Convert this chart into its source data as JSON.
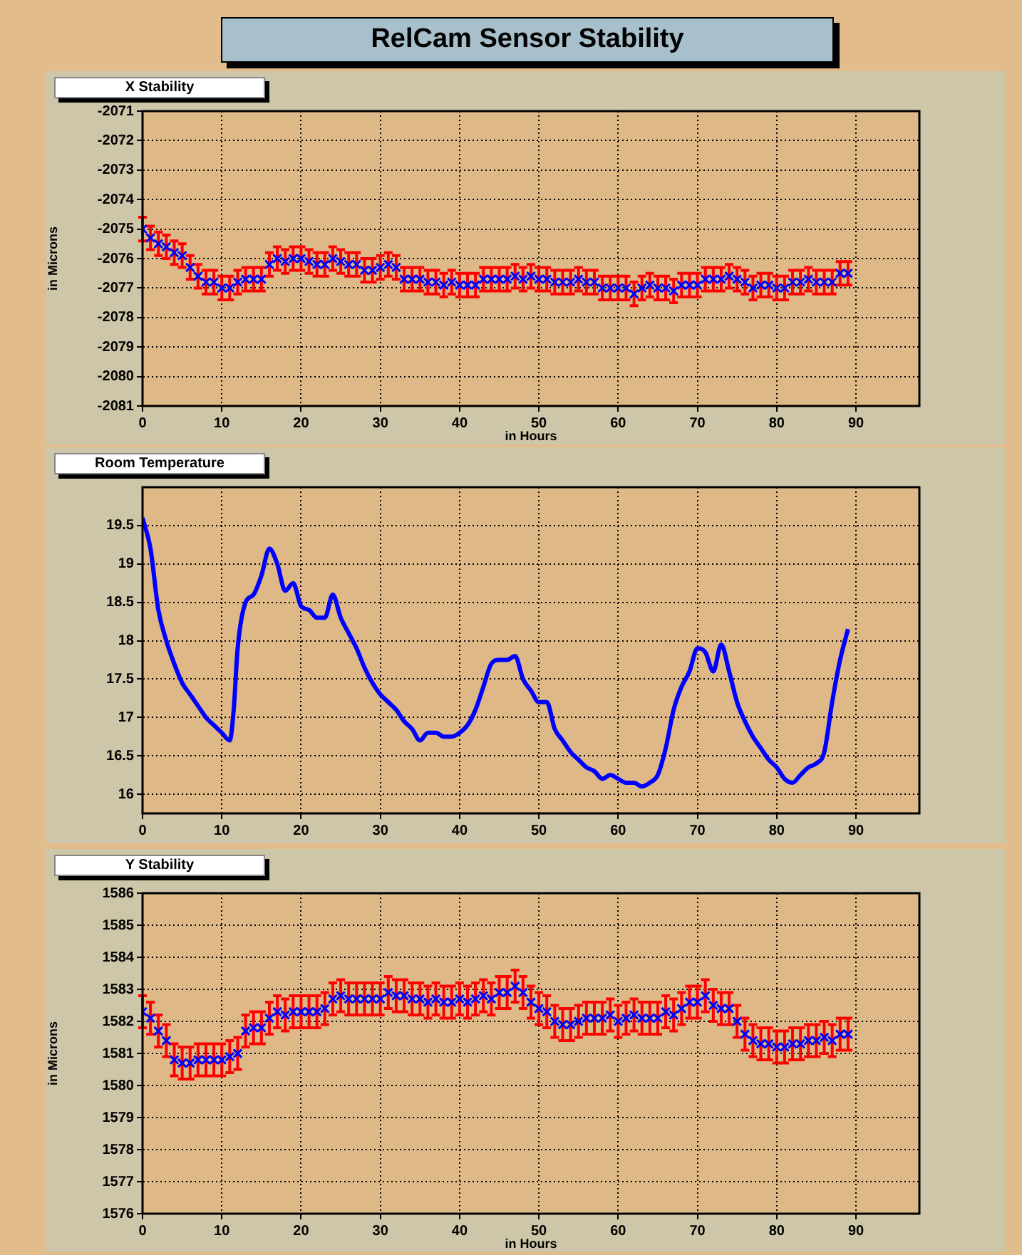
{
  "chart_data": [
    {
      "type": "scatter",
      "title": "RelCam Sensor Stability",
      "subtitle": "X Stability",
      "xlabel": "in Hours",
      "ylabel": "in Microns",
      "xlim": [
        0,
        98
      ],
      "xticks": [
        0,
        10,
        20,
        30,
        40,
        50,
        60,
        70,
        80,
        90
      ],
      "ylim": [
        -2081,
        -2071
      ],
      "yticks": [
        -2081,
        -2080,
        -2079,
        -2078,
        -2077,
        -2076,
        -2075,
        -2074,
        -2073,
        -2072,
        -2071
      ],
      "grid": true,
      "legend": false,
      "marker": "cross",
      "series": [
        {
          "color": "#0000ff",
          "x": [
            0,
            1,
            2,
            3,
            4,
            5,
            6,
            7,
            8,
            9,
            10,
            11,
            12,
            13,
            14,
            15,
            16,
            17,
            18,
            19,
            20,
            21,
            22,
            23,
            24,
            25,
            26,
            27,
            28,
            29,
            30,
            31,
            32,
            33,
            34,
            35,
            36,
            37,
            38,
            39,
            40,
            41,
            42,
            43,
            44,
            45,
            46,
            47,
            48,
            49,
            50,
            51,
            52,
            53,
            54,
            55,
            56,
            57,
            58,
            59,
            60,
            61,
            62,
            63,
            64,
            65,
            66,
            67,
            68,
            69,
            70,
            71,
            72,
            73,
            74,
            75,
            76,
            77,
            78,
            79,
            80,
            81,
            82,
            83,
            84,
            85,
            86,
            87,
            88,
            89
          ],
          "values": [
            -2075.0,
            -2075.3,
            -2075.5,
            -2075.6,
            -2075.8,
            -2075.9,
            -2076.3,
            -2076.6,
            -2076.8,
            -2076.8,
            -2077.0,
            -2077.0,
            -2076.8,
            -2076.7,
            -2076.7,
            -2076.7,
            -2076.2,
            -2076.0,
            -2076.1,
            -2076.0,
            -2076.0,
            -2076.1,
            -2076.2,
            -2076.2,
            -2076.0,
            -2076.1,
            -2076.2,
            -2076.2,
            -2076.4,
            -2076.4,
            -2076.3,
            -2076.2,
            -2076.3,
            -2076.7,
            -2076.7,
            -2076.7,
            -2076.8,
            -2076.8,
            -2076.9,
            -2076.8,
            -2076.9,
            -2076.9,
            -2076.9,
            -2076.7,
            -2076.7,
            -2076.7,
            -2076.7,
            -2076.6,
            -2076.7,
            -2076.6,
            -2076.7,
            -2076.7,
            -2076.8,
            -2076.8,
            -2076.8,
            -2076.7,
            -2076.8,
            -2076.8,
            -2077.0,
            -2077.0,
            -2077.0,
            -2077.0,
            -2077.2,
            -2077.0,
            -2076.9,
            -2077.0,
            -2077.0,
            -2077.1,
            -2076.9,
            -2076.9,
            -2076.9,
            -2076.7,
            -2076.7,
            -2076.7,
            -2076.6,
            -2076.7,
            -2076.8,
            -2077.0,
            -2076.9,
            -2076.9,
            -2077.0,
            -2077.0,
            -2076.8,
            -2076.8,
            -2076.7,
            -2076.8,
            -2076.8,
            -2076.8,
            -2076.5,
            -2076.5
          ],
          "errors": [
            0.4,
            0.4,
            0.4,
            0.4,
            0.4,
            0.4,
            0.4,
            0.4,
            0.4,
            0.4,
            0.4,
            0.4,
            0.4,
            0.4,
            0.4,
            0.4,
            0.4,
            0.4,
            0.4,
            0.4,
            0.4,
            0.4,
            0.4,
            0.4,
            0.4,
            0.4,
            0.4,
            0.4,
            0.4,
            0.4,
            0.4,
            0.4,
            0.4,
            0.4,
            0.4,
            0.4,
            0.4,
            0.4,
            0.4,
            0.4,
            0.4,
            0.4,
            0.4,
            0.4,
            0.4,
            0.4,
            0.4,
            0.4,
            0.4,
            0.4,
            0.4,
            0.4,
            0.4,
            0.4,
            0.4,
            0.4,
            0.4,
            0.4,
            0.4,
            0.4,
            0.4,
            0.4,
            0.4,
            0.4,
            0.4,
            0.4,
            0.4,
            0.4,
            0.4,
            0.4,
            0.4,
            0.4,
            0.4,
            0.4,
            0.4,
            0.4,
            0.4,
            0.4,
            0.4,
            0.4,
            0.4,
            0.4,
            0.4,
            0.4,
            0.4,
            0.4,
            0.4,
            0.4,
            0.4,
            0.4
          ]
        }
      ]
    },
    {
      "type": "line",
      "subtitle": "Room Temperature",
      "xlim": [
        0,
        98
      ],
      "xticks": [
        0,
        10,
        20,
        30,
        40,
        50,
        60,
        70,
        80,
        90
      ],
      "ylim": [
        15.75,
        20
      ],
      "yticks": [
        16,
        16.5,
        17,
        17.5,
        18,
        18.5,
        19,
        19.5
      ],
      "grid": true,
      "legend": false,
      "marker": "none",
      "series": [
        {
          "color": "#0000ff",
          "x": [
            0,
            1,
            2,
            3,
            4,
            5,
            6,
            7,
            8,
            9,
            10,
            11,
            11.5,
            12,
            13,
            14,
            15,
            16,
            17,
            18,
            19,
            20,
            21,
            22,
            23,
            24,
            25,
            26,
            27,
            28,
            29,
            30,
            31,
            32,
            33,
            34,
            35,
            36,
            37,
            38,
            39,
            40,
            41,
            42,
            43,
            44,
            45,
            46,
            47,
            48,
            49,
            50,
            51,
            52,
            53,
            54,
            55,
            56,
            57,
            58,
            59,
            60,
            61,
            62,
            63,
            64,
            65,
            66,
            67,
            68,
            69,
            70,
            71,
            72,
            73,
            74,
            75,
            76,
            77,
            78,
            79,
            80,
            81,
            82,
            83,
            84,
            85,
            86,
            87,
            88,
            89
          ],
          "values": [
            19.6,
            19.2,
            18.4,
            18.0,
            17.7,
            17.45,
            17.3,
            17.15,
            17.0,
            16.9,
            16.8,
            16.7,
            17.1,
            17.9,
            18.5,
            18.6,
            18.85,
            19.2,
            19.0,
            18.65,
            18.75,
            18.45,
            18.4,
            18.3,
            18.3,
            18.6,
            18.3,
            18.1,
            17.9,
            17.65,
            17.45,
            17.3,
            17.2,
            17.1,
            16.95,
            16.85,
            16.7,
            16.8,
            16.8,
            16.75,
            16.75,
            16.8,
            16.9,
            17.1,
            17.4,
            17.7,
            17.75,
            17.75,
            17.8,
            17.5,
            17.35,
            17.2,
            17.2,
            16.85,
            16.7,
            16.55,
            16.45,
            16.35,
            16.3,
            16.2,
            16.25,
            16.2,
            16.15,
            16.15,
            16.1,
            16.15,
            16.25,
            16.6,
            17.1,
            17.4,
            17.6,
            17.9,
            17.85,
            17.6,
            17.95,
            17.6,
            17.2,
            16.95,
            16.75,
            16.6,
            16.45,
            16.35,
            16.2,
            16.15,
            16.25,
            16.35,
            16.4,
            16.55,
            17.2,
            17.75,
            18.15
          ]
        }
      ]
    },
    {
      "type": "scatter",
      "subtitle": "Y Stability",
      "xlabel": "in Hours",
      "ylabel": "in Microns",
      "xlim": [
        0,
        98
      ],
      "xticks": [
        0,
        10,
        20,
        30,
        40,
        50,
        60,
        70,
        80,
        90
      ],
      "ylim": [
        1576,
        1586
      ],
      "yticks": [
        1576,
        1577,
        1578,
        1579,
        1580,
        1581,
        1582,
        1583,
        1584,
        1585,
        1586
      ],
      "grid": true,
      "legend": false,
      "marker": "cross",
      "series": [
        {
          "color": "#0000ff",
          "x": [
            0,
            1,
            2,
            3,
            4,
            5,
            6,
            7,
            8,
            9,
            10,
            11,
            12,
            13,
            14,
            15,
            16,
            17,
            18,
            19,
            20,
            21,
            22,
            23,
            24,
            25,
            26,
            27,
            28,
            29,
            30,
            31,
            32,
            33,
            34,
            35,
            36,
            37,
            38,
            39,
            40,
            41,
            42,
            43,
            44,
            45,
            46,
            47,
            48,
            49,
            50,
            51,
            52,
            53,
            54,
            55,
            56,
            57,
            58,
            59,
            60,
            61,
            62,
            63,
            64,
            65,
            66,
            67,
            68,
            69,
            70,
            71,
            72,
            73,
            74,
            75,
            76,
            77,
            78,
            79,
            80,
            81,
            82,
            83,
            84,
            85,
            86,
            87,
            88,
            89
          ],
          "values": [
            1582.3,
            1582.1,
            1581.7,
            1581.4,
            1580.8,
            1580.7,
            1580.7,
            1580.8,
            1580.8,
            1580.8,
            1580.8,
            1580.9,
            1581.0,
            1581.7,
            1581.8,
            1581.8,
            1582.1,
            1582.3,
            1582.2,
            1582.3,
            1582.3,
            1582.3,
            1582.3,
            1582.4,
            1582.7,
            1582.8,
            1582.7,
            1582.7,
            1582.7,
            1582.7,
            1582.7,
            1582.9,
            1582.8,
            1582.8,
            1582.7,
            1582.7,
            1582.6,
            1582.7,
            1582.6,
            1582.6,
            1582.7,
            1582.6,
            1582.7,
            1582.8,
            1582.7,
            1582.9,
            1582.9,
            1583.1,
            1582.9,
            1582.6,
            1582.4,
            1582.3,
            1582.0,
            1581.9,
            1581.9,
            1582.0,
            1582.1,
            1582.1,
            1582.1,
            1582.2,
            1582.0,
            1582.1,
            1582.2,
            1582.1,
            1582.1,
            1582.1,
            1582.3,
            1582.2,
            1582.4,
            1582.6,
            1582.6,
            1582.8,
            1582.5,
            1582.4,
            1582.4,
            1582.0,
            1581.6,
            1581.4,
            1581.3,
            1581.3,
            1581.2,
            1581.2,
            1581.3,
            1581.3,
            1581.4,
            1581.4,
            1581.5,
            1581.4,
            1581.6,
            1581.6
          ],
          "errors": [
            0.5,
            0.5,
            0.5,
            0.5,
            0.5,
            0.5,
            0.5,
            0.5,
            0.5,
            0.5,
            0.5,
            0.5,
            0.5,
            0.5,
            0.5,
            0.5,
            0.5,
            0.5,
            0.5,
            0.5,
            0.5,
            0.5,
            0.5,
            0.5,
            0.5,
            0.5,
            0.5,
            0.5,
            0.5,
            0.5,
            0.5,
            0.5,
            0.5,
            0.5,
            0.5,
            0.5,
            0.5,
            0.5,
            0.5,
            0.5,
            0.5,
            0.5,
            0.5,
            0.5,
            0.5,
            0.5,
            0.5,
            0.5,
            0.5,
            0.5,
            0.5,
            0.5,
            0.5,
            0.5,
            0.5,
            0.5,
            0.5,
            0.5,
            0.5,
            0.5,
            0.5,
            0.5,
            0.5,
            0.5,
            0.5,
            0.5,
            0.5,
            0.5,
            0.5,
            0.5,
            0.5,
            0.5,
            0.5,
            0.5,
            0.5,
            0.5,
            0.5,
            0.5,
            0.5,
            0.5,
            0.5,
            0.5,
            0.5,
            0.5,
            0.5,
            0.5,
            0.5,
            0.5,
            0.5,
            0.5
          ]
        }
      ]
    }
  ]
}
